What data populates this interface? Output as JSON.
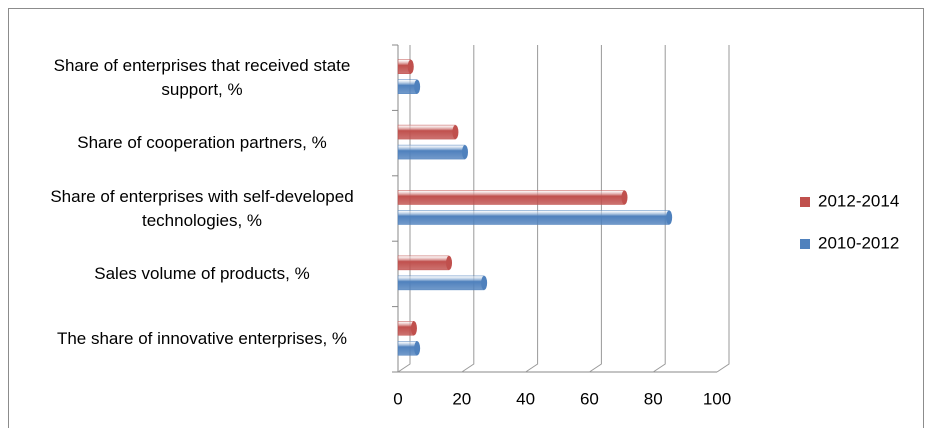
{
  "chart_data": {
    "type": "bar",
    "orientation": "horizontal",
    "categories": [
      "Share of enterprises that received state support, %",
      "Share of cooperation partners, %",
      "Share of enterprises with self-developed technologies, %",
      "Sales volume of products, %",
      "The share of innovative enterprises, %"
    ],
    "series": [
      {
        "name": "2012-2014",
        "color": "#c0504d",
        "values": [
          4,
          18,
          71,
          16,
          5
        ]
      },
      {
        "name": "2010-2012",
        "color": "#4f81bd",
        "values": [
          6,
          21,
          85,
          27,
          6
        ]
      }
    ],
    "xlim": [
      0,
      100
    ],
    "xticks": [
      0,
      20,
      40,
      60,
      80,
      100
    ],
    "grid": true,
    "legend": "right"
  }
}
